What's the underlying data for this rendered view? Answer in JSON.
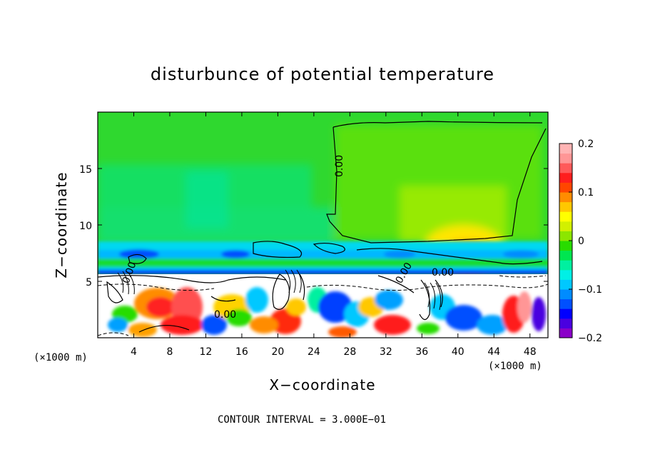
{
  "chart_data": {
    "type": "heatmap",
    "title": "disturbunce of potential temperature",
    "xlabel": "X−coordinate",
    "ylabel": "Z−coordinate",
    "x_unit_left": "(×1000 m)",
    "x_unit_right": "(×1000 m)",
    "xlim": [
      0,
      50
    ],
    "ylim": [
      0,
      20
    ],
    "xticks": [
      4,
      8,
      12,
      16,
      20,
      24,
      28,
      32,
      36,
      40,
      44,
      48
    ],
    "yticks": [
      5,
      10,
      15
    ],
    "colorbar": {
      "range": [
        -0.2,
        0.2
      ],
      "tick_labels": [
        "0.2",
        "0.1",
        "0",
        "−0.1",
        "−0.2"
      ],
      "tick_values": [
        0.2,
        0.1,
        0,
        -0.1,
        -0.2
      ],
      "colors": [
        "#8a00c8",
        "#4a00e0",
        "#0000ff",
        "#0050ff",
        "#008cff",
        "#00c8ff",
        "#00f0e6",
        "#00f0a0",
        "#00e650",
        "#28dc00",
        "#8ce600",
        "#d2f000",
        "#ffff00",
        "#ffc800",
        "#ff8c00",
        "#ff4600",
        "#ff1e1e",
        "#ff5a5a",
        "#ff9696",
        "#ffb4b4"
      ]
    },
    "contour_labels": [
      "0.00",
      "0.00",
      "0.00",
      "0.00",
      "0.00"
    ],
    "contour_interval_text": "CONTOUR INTERVAL = 3.000E−01"
  }
}
